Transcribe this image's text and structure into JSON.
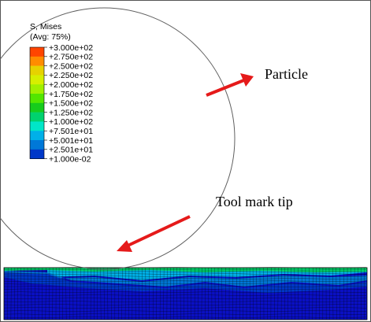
{
  "legend": {
    "title_line1": "S, Mises",
    "title_line2": "(Avg: 75%)",
    "labels": [
      "+3.000e+02",
      "+2.750e+02",
      "+2.500e+02",
      "+2.250e+02",
      "+2.000e+02",
      "+1.750e+02",
      "+1.500e+02",
      "+1.250e+02",
      "+1.000e+02",
      "+7.501e+01",
      "+5.001e+01",
      "+2.501e+01",
      "+1.000e-02"
    ],
    "colors": [
      "#ff4500",
      "#ff8c00",
      "#e6d200",
      "#d6ef00",
      "#a0f000",
      "#52e600",
      "#16cc1c",
      "#00d26e",
      "#00e6c8",
      "#00b0e8",
      "#0078d8",
      "#0038c8",
      "#0000c0"
    ]
  },
  "annotations": {
    "particle": "Particle",
    "tool_mark_tip": "Tool mark tip"
  },
  "colors": {
    "arrow": "#e51a1a",
    "particle_outline": "#606060",
    "mesh_line": "#000000"
  }
}
